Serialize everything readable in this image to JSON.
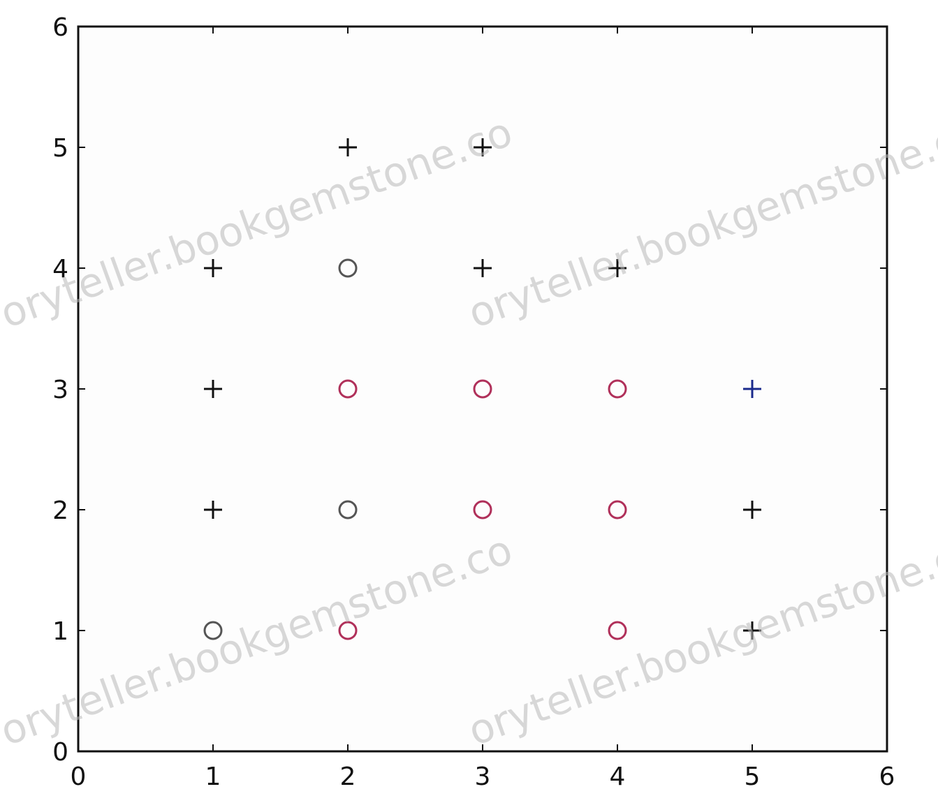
{
  "chart_data": {
    "type": "scatter",
    "title": "",
    "xlabel": "",
    "ylabel": "",
    "xlim": [
      0,
      6
    ],
    "ylim": [
      0,
      6
    ],
    "xticks": [
      "0",
      "1",
      "2",
      "3",
      "4",
      "5",
      "6"
    ],
    "yticks": [
      "0",
      "1",
      "2",
      "3",
      "4",
      "5",
      "6"
    ],
    "grid": false,
    "legend": "none",
    "series": [
      {
        "marker": "plus",
        "color": "#111111",
        "points": [
          [
            1,
            2
          ],
          [
            1,
            3
          ],
          [
            1,
            4
          ],
          [
            2,
            5
          ],
          [
            3,
            4
          ],
          [
            3,
            5
          ],
          [
            4,
            4
          ],
          [
            5,
            1
          ],
          [
            5,
            2
          ]
        ]
      },
      {
        "marker": "plus",
        "color": "#1a2a8c",
        "points": [
          [
            5,
            3
          ]
        ]
      },
      {
        "marker": "circle",
        "color": "#555555",
        "points": [
          [
            1,
            1
          ],
          [
            2,
            2
          ],
          [
            2,
            4
          ]
        ]
      },
      {
        "marker": "circle",
        "color": "#b0305a",
        "points": [
          [
            2,
            1
          ],
          [
            2,
            3
          ],
          [
            3,
            2
          ],
          [
            3,
            3
          ],
          [
            4,
            1
          ],
          [
            4,
            2
          ],
          [
            4,
            3
          ]
        ]
      }
    ]
  },
  "watermarks": [
    "oryteller.bookgemstone.co",
    "oryteller.bookgemstone.co",
    "oryteller.bookgemstone.co",
    "oryteller.bookgemstone.co"
  ]
}
